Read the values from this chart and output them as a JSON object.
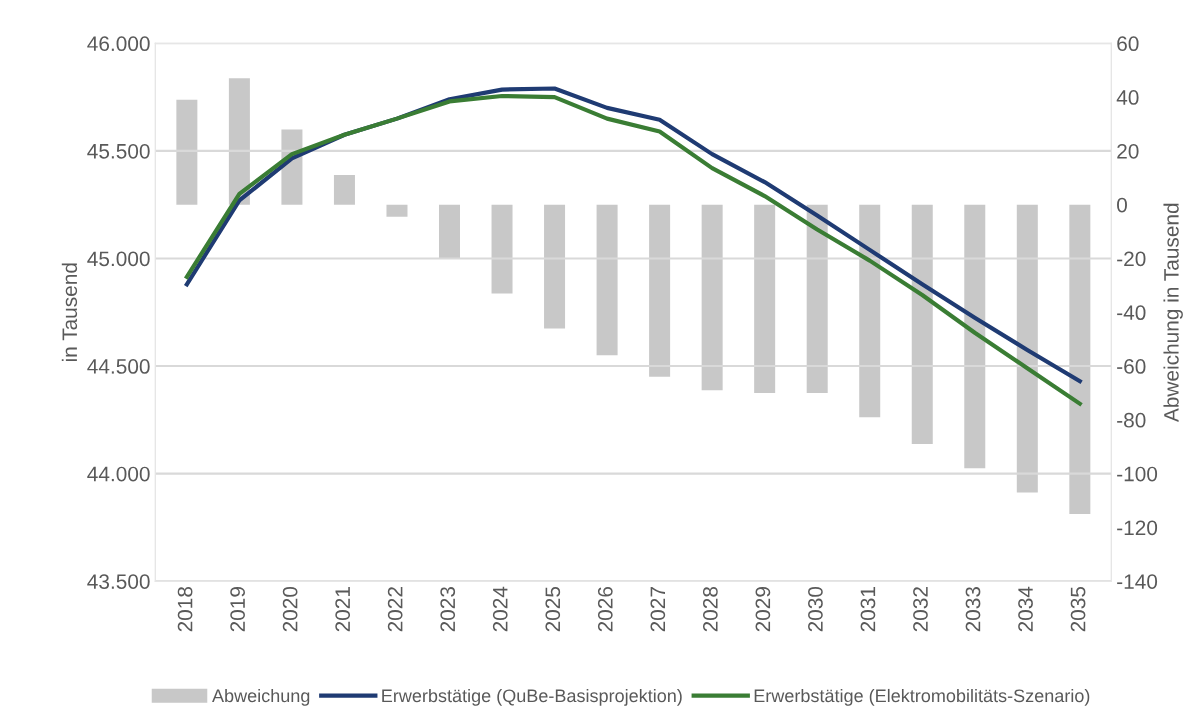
{
  "chart_data": {
    "type": "line",
    "categories": [
      "2018",
      "2019",
      "2020",
      "2021",
      "2022",
      "2023",
      "2024",
      "2025",
      "2026",
      "2027",
      "2028",
      "2029",
      "2030",
      "2031",
      "2032",
      "2033",
      "2034",
      "2035"
    ],
    "series": [
      {
        "name": "Abweichung",
        "type": "bar",
        "axis": "y2",
        "color": "#c8c8c8",
        "values": [
          39,
          47,
          28,
          11,
          -4.5,
          -20,
          -33,
          -46,
          -56,
          -64,
          -69,
          -70,
          -70,
          -79,
          -89,
          -98,
          -107,
          -115
        ]
      },
      {
        "name": "Erwerbstätige (QuBe-Basisprojektion)",
        "color": "#1f3b73",
        "values": [
          44880,
          45270,
          45465,
          45575,
          45650,
          45740,
          45785,
          45790,
          45700,
          45645,
          45485,
          45355,
          45200,
          45040,
          44880,
          44725,
          44575,
          44430
        ]
      },
      {
        "name": "Erwerbstätige (Elektromobilitäts-Szenario)",
        "color": "#3a7d34",
        "values": [
          44915,
          45300,
          45485,
          45575,
          45650,
          45730,
          45755,
          45750,
          45650,
          45590,
          45420,
          45290,
          45135,
          44990,
          44830,
          44655,
          44490,
          44325
        ]
      }
    ],
    "ylabel": "in Tausend",
    "y2label": "Abweichung in Tausend",
    "ylim": [
      43500,
      46000
    ],
    "yticks": [
      {
        "value": 43500,
        "label": "43.500"
      },
      {
        "value": 44000,
        "label": "44.000"
      },
      {
        "value": 44500,
        "label": "44.500"
      },
      {
        "value": 45000,
        "label": "45.000"
      },
      {
        "value": 45500,
        "label": "45.500"
      },
      {
        "value": 46000,
        "label": "46.000"
      }
    ],
    "y2lim": [
      -140,
      60
    ],
    "y2ticks": [
      -140,
      -120,
      -100,
      -80,
      -60,
      -40,
      -20,
      0,
      20,
      40,
      60
    ],
    "grid": "y",
    "legend": "bottom",
    "marker": "none",
    "line_style": "solid"
  }
}
